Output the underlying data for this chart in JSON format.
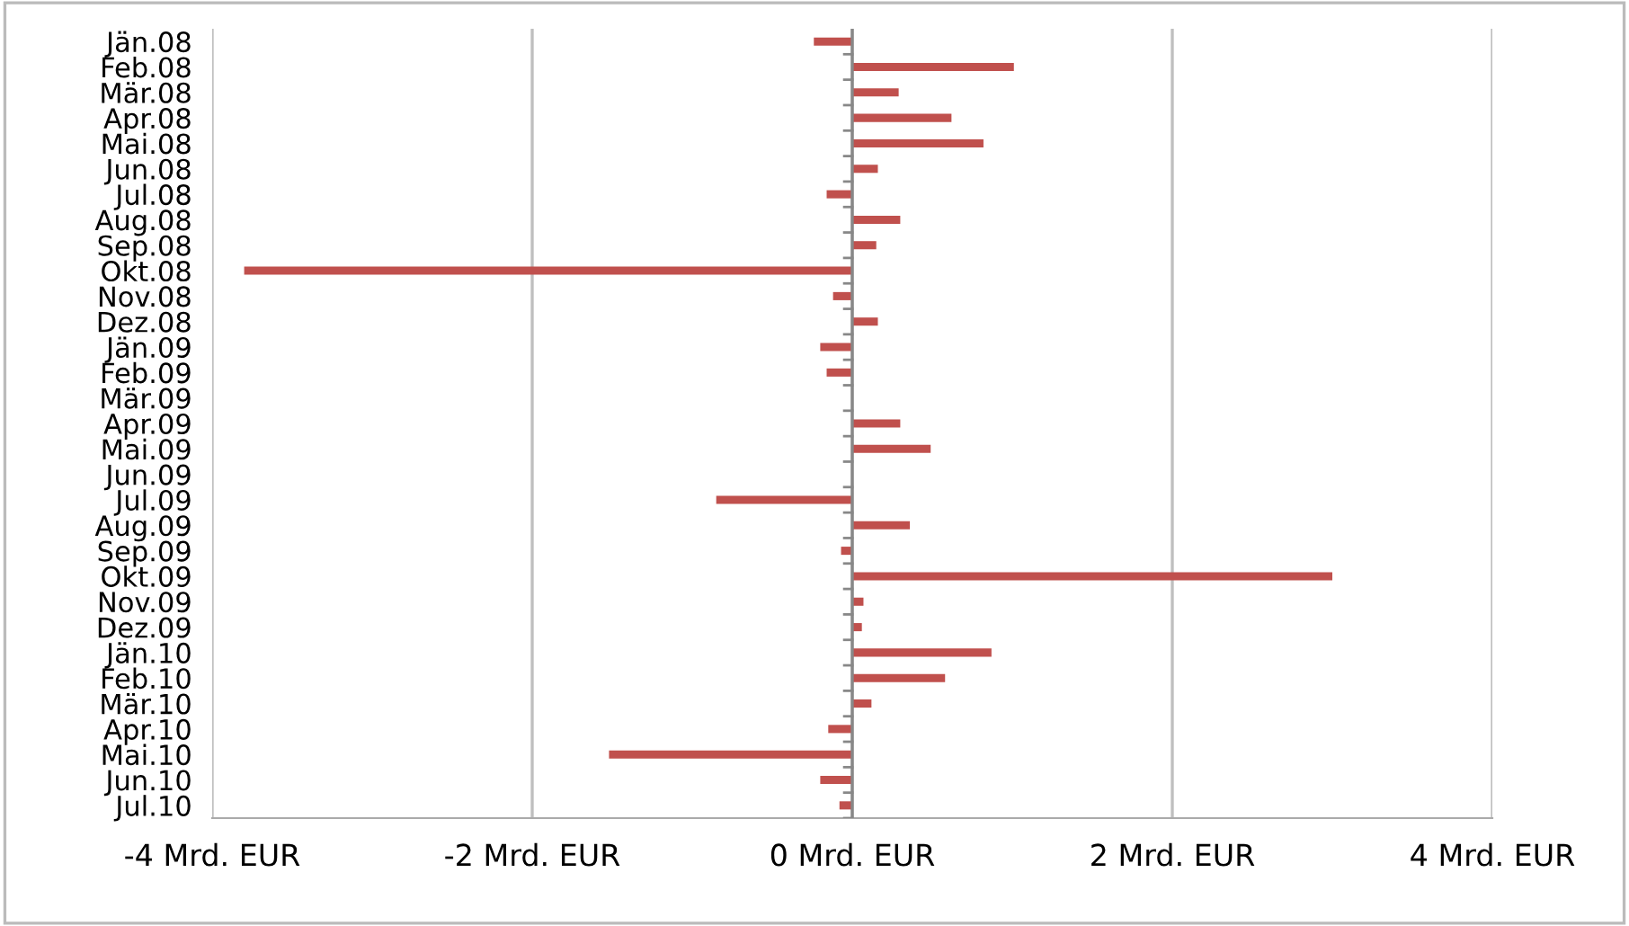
{
  "chart_data": {
    "type": "bar",
    "orientation": "horizontal",
    "categories": [
      "Jän.08",
      "Feb.08",
      "Mär.08",
      "Apr.08",
      "Mai.08",
      "Jun.08",
      "Jul.08",
      "Aug.08",
      "Sep.08",
      "Okt.08",
      "Nov.08",
      "Dez.08",
      "Jän.09",
      "Feb.09",
      "Mär.09",
      "Apr.09",
      "Mai.09",
      "Jun.09",
      "Jul.09",
      "Aug.09",
      "Sep.09",
      "Okt.09",
      "Nov.09",
      "Dez.09",
      "Jän.10",
      "Feb.10",
      "Mär.10",
      "Apr.10",
      "Mai.10",
      "Jun.10",
      "Jul.10"
    ],
    "values": [
      -0.24,
      1.01,
      0.29,
      0.62,
      0.82,
      0.16,
      -0.16,
      0.3,
      0.15,
      -3.8,
      -0.12,
      0.16,
      -0.2,
      -0.16,
      null,
      0.3,
      0.49,
      0.0,
      -0.85,
      0.36,
      -0.07,
      3.0,
      0.07,
      0.06,
      0.87,
      0.58,
      0.12,
      -0.15,
      -1.52,
      -0.2,
      -0.08
    ],
    "color": "#c0504d",
    "xlim": [
      -4,
      4
    ],
    "xticks": [
      {
        "value": -4,
        "label": "-4 Mrd. EUR"
      },
      {
        "value": -2,
        "label": "-2 Mrd. EUR"
      },
      {
        "value": 0,
        "label": "0 Mrd. EUR"
      },
      {
        "value": 2,
        "label": "2 Mrd. EUR"
      },
      {
        "value": 4,
        "label": "4 Mrd. EUR"
      }
    ],
    "grid": "x",
    "legend": false
  }
}
